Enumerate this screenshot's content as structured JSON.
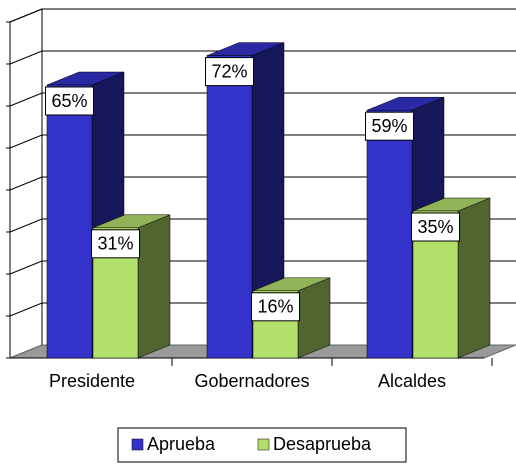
{
  "chart_data": {
    "type": "bar3d",
    "categories": [
      "Presidente",
      "Gobernadores",
      "Alcaldes"
    ],
    "series": [
      {
        "name": "Aprueba",
        "color": "#3333cc",
        "values": [
          65,
          72,
          59
        ],
        "value_labels": [
          "65%",
          "72%",
          "59%"
        ]
      },
      {
        "name": "Desaprueba",
        "color": "#b3e06b",
        "values": [
          31,
          16,
          35
        ],
        "value_labels": [
          "31%",
          "16%",
          "35%"
        ]
      }
    ],
    "ylim": [
      0,
      80
    ],
    "yticks": [
      0,
      10,
      20,
      30,
      40,
      50,
      60,
      70,
      80
    ],
    "grid": true,
    "legend": "bottom"
  }
}
